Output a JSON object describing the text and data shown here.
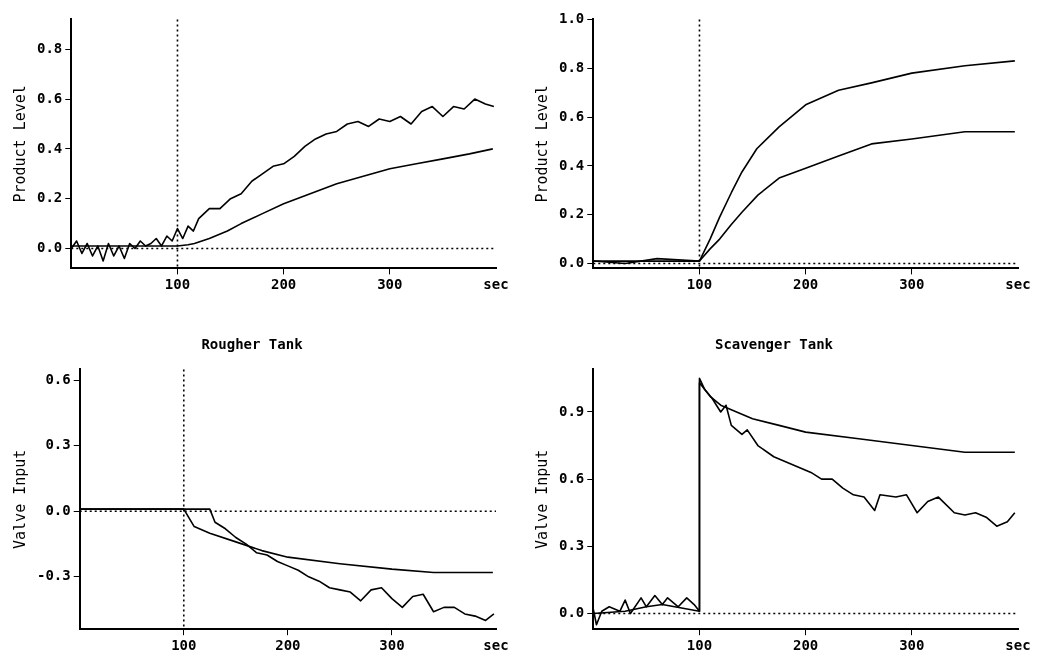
{
  "chart_data": [
    {
      "type": "line",
      "title": "Rougher Tank",
      "xlabel": "sec",
      "ylabel": "Product Level",
      "xlim": [
        0,
        400
      ],
      "xticks": [
        100,
        200,
        300
      ],
      "ylim": [
        -0.08,
        0.92
      ],
      "yticks": [
        {
          "value": 0,
          "label": "0.0"
        },
        0.2,
        0.4,
        0.6,
        0.8
      ],
      "grid": false,
      "legend": false,
      "marker": "none",
      "line_style": "solid",
      "ref_lines": [
        {
          "axis": "x",
          "value": 100,
          "line_style": "dotted",
          "color": "#000000"
        },
        {
          "axis": "y",
          "value": 0,
          "line_style": "dotted",
          "color": "#000000"
        }
      ],
      "series": [
        {
          "color": "#000000",
          "x": [
            0,
            5,
            10,
            15,
            20,
            25,
            30,
            35,
            40,
            45,
            50,
            55,
            60,
            65,
            70,
            75,
            80,
            85,
            90,
            95,
            100,
            105,
            110,
            115,
            120,
            130,
            140,
            150,
            160,
            170,
            180,
            190,
            200,
            210,
            220,
            230,
            240,
            250,
            260,
            270,
            280,
            290,
            300,
            310,
            320,
            330,
            340,
            350,
            360,
            370,
            380,
            390,
            398
          ],
          "values": [
            0.0,
            0.03,
            -0.02,
            0.02,
            -0.03,
            0.01,
            -0.05,
            0.02,
            -0.03,
            0.01,
            -0.04,
            0.02,
            0.0,
            0.03,
            0.01,
            0.02,
            0.04,
            0.01,
            0.05,
            0.03,
            0.08,
            0.04,
            0.09,
            0.07,
            0.12,
            0.16,
            0.16,
            0.2,
            0.22,
            0.27,
            0.3,
            0.33,
            0.34,
            0.37,
            0.41,
            0.44,
            0.46,
            0.47,
            0.5,
            0.51,
            0.49,
            0.52,
            0.51,
            0.53,
            0.5,
            0.55,
            0.57,
            0.53,
            0.57,
            0.56,
            0.6,
            0.58,
            0.57
          ]
        },
        {
          "color": "#000000",
          "x": [
            0,
            100,
            110,
            116,
            130,
            147,
            160,
            180,
            200,
            225,
            250,
            275,
            300,
            325,
            350,
            375,
            397
          ],
          "values": [
            0.01,
            0.01,
            0.015,
            0.02,
            0.04,
            0.07,
            0.1,
            0.14,
            0.18,
            0.22,
            0.26,
            0.29,
            0.32,
            0.34,
            0.36,
            0.38,
            0.4
          ]
        }
      ]
    },
    {
      "type": "line",
      "title": "Scavenger Tank",
      "xlabel": "sec",
      "ylabel": "Product Level",
      "xlim": [
        0,
        400
      ],
      "xticks": [
        100,
        200,
        300
      ],
      "ylim": [
        -0.02,
        1.0
      ],
      "yticks": [
        {
          "value": 0,
          "label": "0.0"
        },
        0.2,
        0.4,
        0.6,
        0.8,
        {
          "value": 1,
          "label": "1.0"
        }
      ],
      "grid": false,
      "legend": false,
      "marker": "none",
      "line_style": "solid",
      "ref_lines": [
        {
          "axis": "x",
          "value": 100,
          "line_style": "dotted",
          "color": "#000000"
        },
        {
          "axis": "y",
          "value": 0,
          "line_style": "dotted",
          "color": "#000000"
        }
      ],
      "series": [
        {
          "color": "#000000",
          "x": [
            0,
            30,
            60,
            100,
            110,
            119,
            130,
            140,
            154,
            175,
            200,
            231,
            262,
            300,
            350,
            397
          ],
          "values": [
            0.01,
            0.0,
            0.02,
            0.01,
            0.1,
            0.19,
            0.29,
            0.375,
            0.47,
            0.56,
            0.65,
            0.71,
            0.74,
            0.78,
            0.81,
            0.83
          ]
        },
        {
          "color": "#000000",
          "x": [
            0,
            50,
            100,
            110,
            119,
            130,
            140,
            155,
            175,
            200,
            231,
            262,
            300,
            350,
            397
          ],
          "values": [
            0.01,
            0.01,
            0.01,
            0.06,
            0.1,
            0.16,
            0.21,
            0.28,
            0.35,
            0.39,
            0.44,
            0.49,
            0.51,
            0.54,
            0.54
          ]
        }
      ]
    },
    {
      "type": "line",
      "xlabel": "sec",
      "ylabel": "Valve Input",
      "xlim": [
        0,
        400
      ],
      "xticks": [
        100,
        200,
        300
      ],
      "ylim": [
        -0.54,
        0.65
      ],
      "yticks": [
        {
          "value": -0.3,
          "label": "-0.3"
        },
        {
          "value": 0,
          "label": "0.0"
        },
        0.3,
        0.6
      ],
      "grid": false,
      "legend": false,
      "marker": "none",
      "line_style": "solid",
      "ref_lines": [
        {
          "axis": "x",
          "value": 100,
          "line_style": "dotted",
          "color": "#000000"
        },
        {
          "axis": "y",
          "value": 0,
          "line_style": "dotted",
          "color": "#000000"
        }
      ],
      "series": [
        {
          "color": "#000000",
          "x": [
            0,
            100,
            110,
            125,
            150,
            175,
            200,
            250,
            300,
            340,
            397
          ],
          "values": [
            0.01,
            0.01,
            -0.07,
            -0.1,
            -0.14,
            -0.18,
            -0.21,
            -0.24,
            -0.265,
            -0.28,
            -0.28
          ]
        },
        {
          "color": "#000000",
          "x": [
            0,
            100,
            125,
            130,
            140,
            150,
            160,
            170,
            180,
            190,
            200,
            210,
            220,
            230,
            240,
            250,
            260,
            270,
            280,
            290,
            300,
            310,
            320,
            330,
            340,
            350,
            360,
            370,
            380,
            390,
            398
          ],
          "values": [
            0.01,
            0.01,
            0.01,
            -0.05,
            -0.08,
            -0.12,
            -0.15,
            -0.19,
            -0.2,
            -0.23,
            -0.25,
            -0.27,
            -0.3,
            -0.32,
            -0.35,
            -0.36,
            -0.37,
            -0.41,
            -0.36,
            -0.35,
            -0.4,
            -0.44,
            -0.39,
            -0.38,
            -0.46,
            -0.44,
            -0.44,
            -0.47,
            -0.48,
            -0.5,
            -0.47
          ]
        }
      ]
    },
    {
      "type": "line",
      "xlabel": "sec",
      "ylabel": "Valve Input",
      "xlim": [
        0,
        400
      ],
      "xticks": [
        100,
        200,
        300
      ],
      "ylim": [
        -0.07,
        1.09
      ],
      "yticks": [
        {
          "value": 0,
          "label": "0.0"
        },
        0.3,
        0.6,
        0.9
      ],
      "grid": false,
      "legend": false,
      "marker": "none",
      "line_style": "solid",
      "ref_lines": [
        {
          "axis": "y",
          "value": 0,
          "line_style": "dotted",
          "color": "#000000"
        }
      ],
      "series": [
        {
          "color": "#000000",
          "x": [
            0,
            30,
            50,
            65,
            100,
            100,
            110,
            120,
            150,
            175,
            200,
            250,
            300,
            350,
            397
          ],
          "values": [
            0.0,
            0.01,
            0.03,
            0.04,
            0.01,
            1.03,
            0.97,
            0.93,
            0.87,
            0.84,
            0.81,
            0.78,
            0.75,
            0.72,
            0.72
          ]
        },
        {
          "color": "#000000",
          "x": [
            0,
            3,
            8,
            15,
            25,
            30,
            35,
            45,
            50,
            58,
            65,
            70,
            80,
            88,
            95,
            100,
            100,
            105,
            112,
            120,
            125,
            130,
            140,
            145,
            155,
            170,
            180,
            195,
            205,
            215,
            225,
            235,
            245,
            255,
            265,
            270,
            285,
            295,
            305,
            315,
            325,
            340,
            350,
            360,
            370,
            380,
            390,
            397
          ],
          "values": [
            0.02,
            -0.05,
            0.01,
            0.03,
            0.01,
            0.06,
            0.0,
            0.07,
            0.03,
            0.08,
            0.04,
            0.07,
            0.03,
            0.07,
            0.04,
            0.01,
            1.05,
            1.0,
            0.96,
            0.9,
            0.93,
            0.84,
            0.8,
            0.82,
            0.75,
            0.7,
            0.68,
            0.65,
            0.63,
            0.6,
            0.6,
            0.56,
            0.53,
            0.52,
            0.46,
            0.53,
            0.52,
            0.53,
            0.45,
            0.5,
            0.52,
            0.45,
            0.44,
            0.45,
            0.43,
            0.39,
            0.41,
            0.45
          ]
        }
      ]
    }
  ]
}
